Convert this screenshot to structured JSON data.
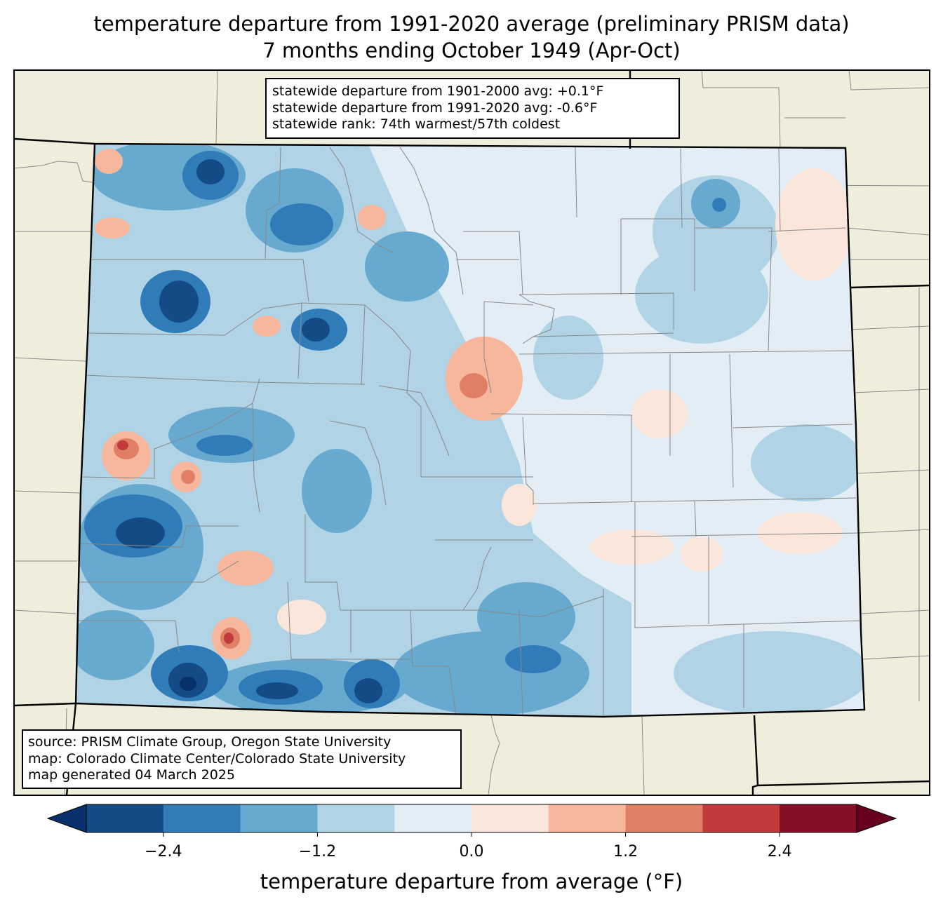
{
  "title": {
    "line1": "temperature departure from 1991-2020 average (preliminary PRISM data)",
    "line2": "7 months ending October 1949 (Apr-Oct)"
  },
  "stats": {
    "line1": "statewide departure from 1901-2000 avg: +0.1°F",
    "line2": "statewide departure from 1991-2020 avg: -0.6°F",
    "line3": "statewide rank: 74th warmest/57th coldest"
  },
  "source": {
    "line1": "source: PRISM Climate Group, Oregon State University",
    "line2": "map: Colorado Climate Center/Colorado State University",
    "line3": "map generated 04 March 2025"
  },
  "colorbar": {
    "label": "temperature departure from average (°F)",
    "ticks": [
      "−2.4",
      "−1.2",
      "0.0",
      "1.2",
      "2.4"
    ],
    "colors": [
      "#08306b",
      "#144b87",
      "#2f7cb9",
      "#67a9cf",
      "#b0d4e6",
      "#e3edf5",
      "#fbe6dc",
      "#f6b79c",
      "#e07e66",
      "#c13a3c",
      "#860f26",
      "#67001f"
    ]
  },
  "map": {
    "background_color": "#efeddc",
    "neighbor_border_color": "#888888",
    "state_border_color": "#000000"
  }
}
